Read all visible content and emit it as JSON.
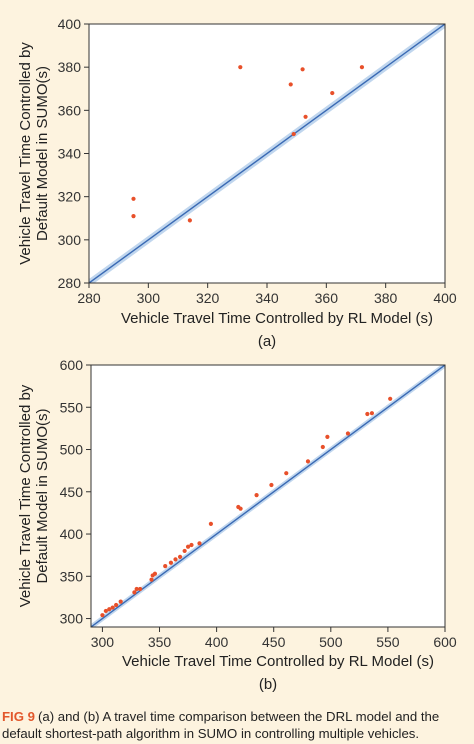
{
  "chart_data": [
    {
      "type": "scatter",
      "panel_label": "(a)",
      "xlabel": "Vehicle Travel Time Controlled by RL Model (s)",
      "ylabel_lines": [
        "Vehicle Travel Time Controlled by",
        "Default Model in SUMO(s)"
      ],
      "xlim": [
        280,
        400
      ],
      "ylim": [
        280,
        400
      ],
      "xticks": [
        280,
        300,
        320,
        340,
        360,
        380,
        400
      ],
      "yticks": [
        280,
        300,
        320,
        340,
        360,
        380,
        400
      ],
      "reference_line": "y = x",
      "colors": {
        "points": "#e8502a",
        "line": "#3a6ab4",
        "band": "#b9d1ec"
      },
      "points": [
        {
          "x": 295,
          "y": 319
        },
        {
          "x": 295,
          "y": 311
        },
        {
          "x": 314,
          "y": 309
        },
        {
          "x": 331,
          "y": 380
        },
        {
          "x": 348,
          "y": 372
        },
        {
          "x": 352,
          "y": 379
        },
        {
          "x": 353,
          "y": 357
        },
        {
          "x": 362,
          "y": 368
        },
        {
          "x": 372,
          "y": 380
        },
        {
          "x": 349,
          "y": 349
        }
      ]
    },
    {
      "type": "scatter",
      "panel_label": "(b)",
      "xlabel": "Vehicle Travel Time Controlled by RL Model (s)",
      "ylabel_lines": [
        "Vehicle Travel Time Controlled by",
        "Default Model in SUMO(s)"
      ],
      "xlim": [
        290,
        600
      ],
      "ylim": [
        290,
        600
      ],
      "xticks": [
        300,
        350,
        400,
        450,
        500,
        550,
        600
      ],
      "yticks": [
        300,
        350,
        400,
        450,
        500,
        550,
        600
      ],
      "reference_line": "y = x",
      "colors": {
        "points": "#e8502a",
        "line": "#3a6ab4",
        "band": "#b9d1ec"
      },
      "points": [
        {
          "x": 300,
          "y": 304
        },
        {
          "x": 303,
          "y": 309
        },
        {
          "x": 306,
          "y": 311
        },
        {
          "x": 309,
          "y": 313
        },
        {
          "x": 312,
          "y": 316
        },
        {
          "x": 316,
          "y": 320
        },
        {
          "x": 328,
          "y": 331
        },
        {
          "x": 330,
          "y": 335
        },
        {
          "x": 333,
          "y": 335
        },
        {
          "x": 343,
          "y": 346
        },
        {
          "x": 344,
          "y": 351
        },
        {
          "x": 346,
          "y": 353
        },
        {
          "x": 355,
          "y": 362
        },
        {
          "x": 360,
          "y": 366
        },
        {
          "x": 364,
          "y": 370
        },
        {
          "x": 368,
          "y": 373
        },
        {
          "x": 372,
          "y": 380
        },
        {
          "x": 375,
          "y": 385
        },
        {
          "x": 378,
          "y": 387
        },
        {
          "x": 385,
          "y": 389
        },
        {
          "x": 395,
          "y": 412
        },
        {
          "x": 419,
          "y": 432
        },
        {
          "x": 421,
          "y": 430
        },
        {
          "x": 435,
          "y": 446
        },
        {
          "x": 448,
          "y": 458
        },
        {
          "x": 461,
          "y": 472
        },
        {
          "x": 480,
          "y": 486
        },
        {
          "x": 493,
          "y": 503
        },
        {
          "x": 497,
          "y": 515
        },
        {
          "x": 515,
          "y": 519
        },
        {
          "x": 532,
          "y": 542
        },
        {
          "x": 536,
          "y": 543
        },
        {
          "x": 552,
          "y": 560
        }
      ]
    }
  ],
  "caption": {
    "fig_label": "FIG 9",
    "text": "(a) and (b) A travel time comparison between the DRL model and the default shortest-path algorithm in SUMO in controlling multiple vehicles."
  }
}
